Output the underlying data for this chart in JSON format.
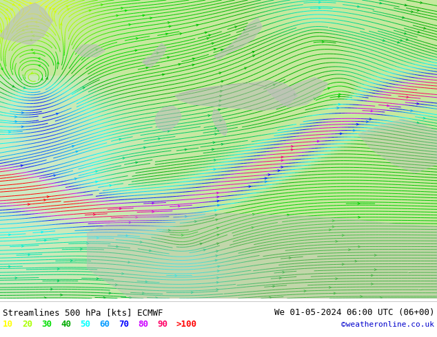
{
  "title_left": "Streamlines 500 hPa [kts] ECMWF",
  "title_right": "We 01-05-2024 06:00 UTC (06+00)",
  "credit": "©weatheronline.co.uk",
  "legend_values": [
    "10",
    "20",
    "30",
    "40",
    "50",
    "60",
    "70",
    "80",
    "90",
    ">100"
  ],
  "legend_colors": [
    "#ffff00",
    "#aaff00",
    "#00dd00",
    "#00aa00",
    "#00ffff",
    "#0099ff",
    "#0000ff",
    "#cc00ff",
    "#ff0066",
    "#ff0000"
  ],
  "fig_width": 6.34,
  "fig_height": 4.9,
  "dpi": 100,
  "map_bg": "#c8e8a0",
  "title_fontsize": 9,
  "legend_fontsize": 9,
  "credit_fontsize": 8,
  "title_color": "#000000",
  "credit_color": "#0000cc"
}
